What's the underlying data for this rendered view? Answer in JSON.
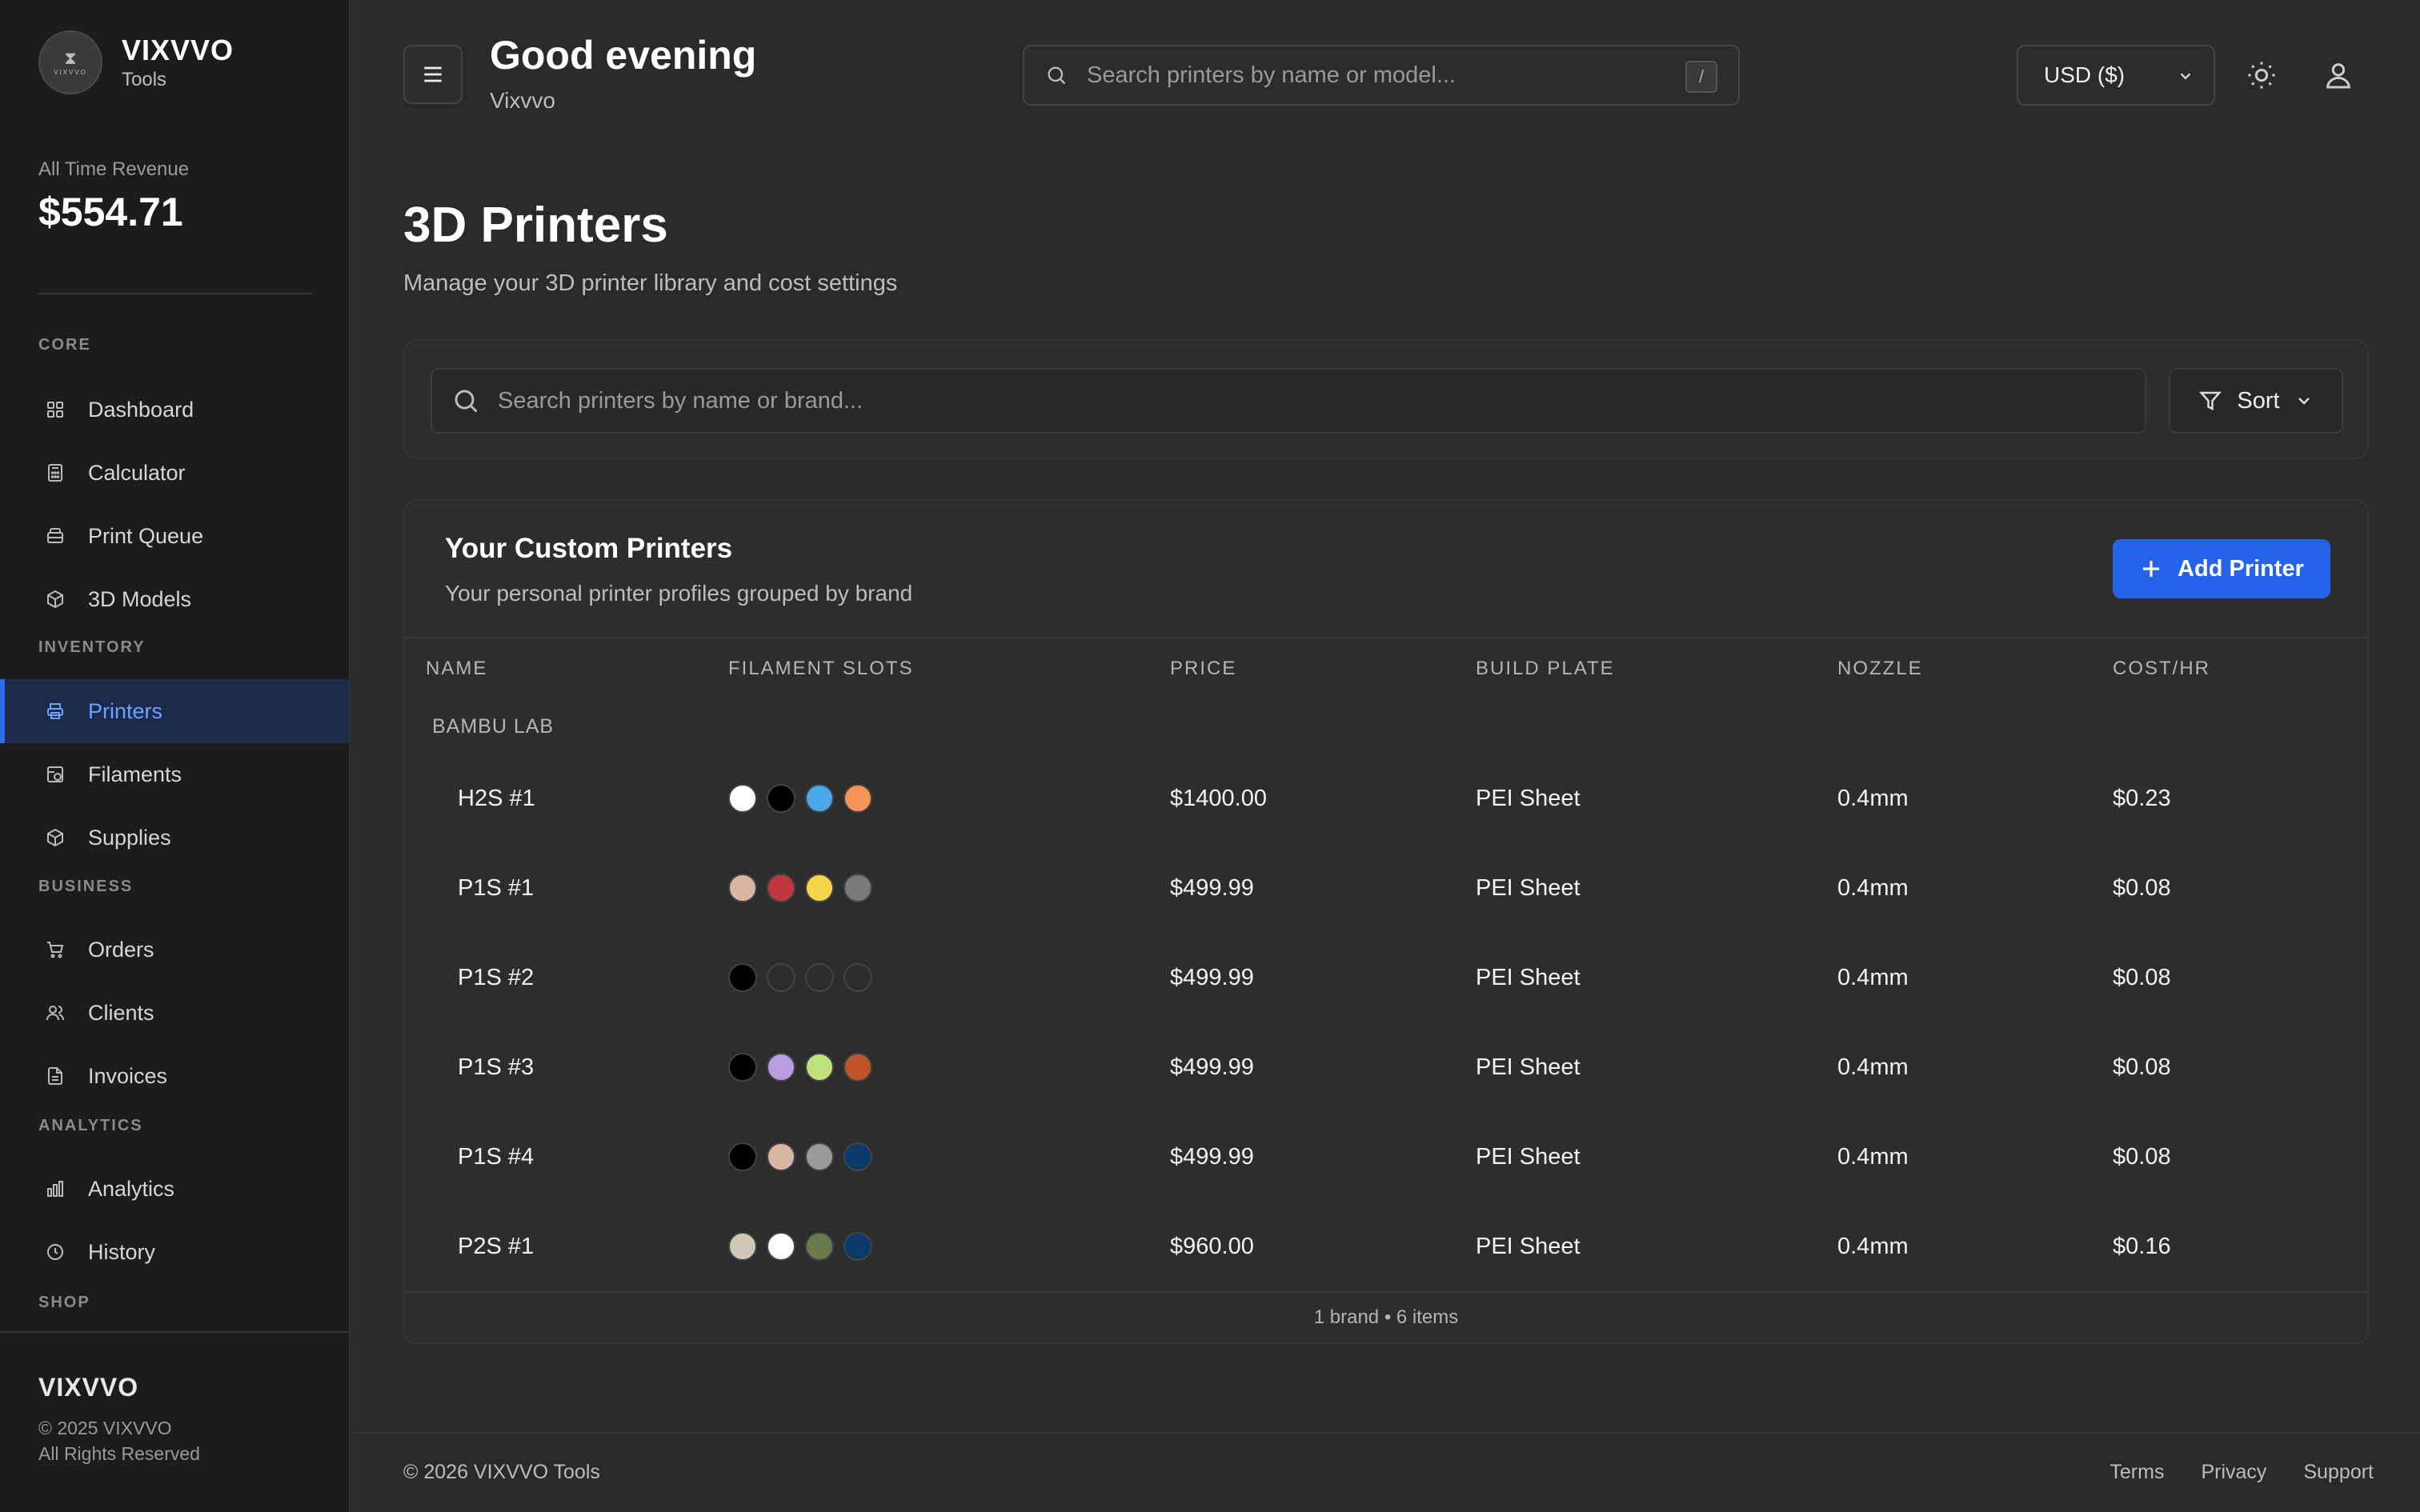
{
  "brand": {
    "name": "VIXVVO",
    "subtitle": "Tools",
    "logo_mini": "VIXVVO"
  },
  "revenue": {
    "label": "All Time Revenue",
    "value": "$554.71"
  },
  "sidebar": {
    "sections": [
      {
        "title": "CORE",
        "items": [
          {
            "label": "Dashboard",
            "icon": "grid-icon"
          },
          {
            "label": "Calculator",
            "icon": "calculator-icon"
          },
          {
            "label": "Print Queue",
            "icon": "layers-icon"
          },
          {
            "label": "3D Models",
            "icon": "box-icon"
          }
        ]
      },
      {
        "title": "INVENTORY",
        "items": [
          {
            "label": "Printers",
            "icon": "printer-icon",
            "active": true
          },
          {
            "label": "Filaments",
            "icon": "spool-icon"
          },
          {
            "label": "Supplies",
            "icon": "package-icon"
          }
        ]
      },
      {
        "title": "BUSINESS",
        "items": [
          {
            "label": "Orders",
            "icon": "cart-icon"
          },
          {
            "label": "Clients",
            "icon": "users-icon"
          },
          {
            "label": "Invoices",
            "icon": "file-icon"
          }
        ]
      },
      {
        "title": "ANALYTICS",
        "items": [
          {
            "label": "Analytics",
            "icon": "bar-chart-icon"
          },
          {
            "label": "History",
            "icon": "clock-icon"
          }
        ]
      },
      {
        "title": "SHOP",
        "items": []
      }
    ],
    "footer": {
      "name": "VIXVVO",
      "copyright": "© 2025 VIXVVO",
      "rights": "All Rights Reserved"
    }
  },
  "header": {
    "greeting": "Good evening",
    "user": "Vixvvo",
    "search_placeholder": "Search printers by name or model...",
    "search_shortcut": "/",
    "currency": "USD ($)"
  },
  "page": {
    "title": "3D Printers",
    "subtitle": "Manage your 3D printer library and cost settings",
    "search_placeholder": "Search printers by name or brand...",
    "sort_label": "Sort"
  },
  "table": {
    "title": "Your Custom Printers",
    "subtitle": "Your personal printer profiles grouped by brand",
    "add_label": "Add Printer",
    "columns": [
      "NAME",
      "FILAMENT SLOTS",
      "PRICE",
      "BUILD PLATE",
      "NOZZLE",
      "COST/HR"
    ],
    "group": "BAMBU LAB",
    "rows": [
      {
        "name": "H2S #1",
        "slots": [
          "#ffffff",
          "#000000",
          "#4aa8e8",
          "#f4945a"
        ],
        "price": "$1400.00",
        "plate": "PEI Sheet",
        "nozzle": "0.4mm",
        "cost": "$0.23"
      },
      {
        "name": "P1S #1",
        "slots": [
          "#d9b5a4",
          "#c1353c",
          "#f4d44a",
          "#7a7a7a"
        ],
        "price": "$499.99",
        "plate": "PEI Sheet",
        "nozzle": "0.4mm",
        "cost": "$0.08"
      },
      {
        "name": "P1S #2",
        "slots": [
          "#000000",
          "",
          "",
          ""
        ],
        "price": "$499.99",
        "plate": "PEI Sheet",
        "nozzle": "0.4mm",
        "cost": "$0.08"
      },
      {
        "name": "P1S #3",
        "slots": [
          "#000000",
          "#b69ce0",
          "#bfe07e",
          "#c0552a"
        ],
        "price": "$499.99",
        "plate": "PEI Sheet",
        "nozzle": "0.4mm",
        "cost": "$0.08"
      },
      {
        "name": "P1S #4",
        "slots": [
          "#000000",
          "#d9b5a4",
          "#9a9a9a",
          "#0a3a6a"
        ],
        "price": "$499.99",
        "plate": "PEI Sheet",
        "nozzle": "0.4mm",
        "cost": "$0.08"
      },
      {
        "name": "P2S #1",
        "slots": [
          "#cfc7b8",
          "#ffffff",
          "#6b7a4a",
          "#0a3a6a"
        ],
        "price": "$960.00",
        "plate": "PEI Sheet",
        "nozzle": "0.4mm",
        "cost": "$0.16"
      }
    ],
    "footer": "1 brand • 6 items"
  },
  "page_footer": {
    "copyright": "© 2026 VIXVVO Tools",
    "links": [
      "Terms",
      "Privacy",
      "Support"
    ]
  },
  "colors": {
    "accent": "#2563eb",
    "active_bg": "#1d2a4a",
    "active_text": "#6ea0ff"
  }
}
